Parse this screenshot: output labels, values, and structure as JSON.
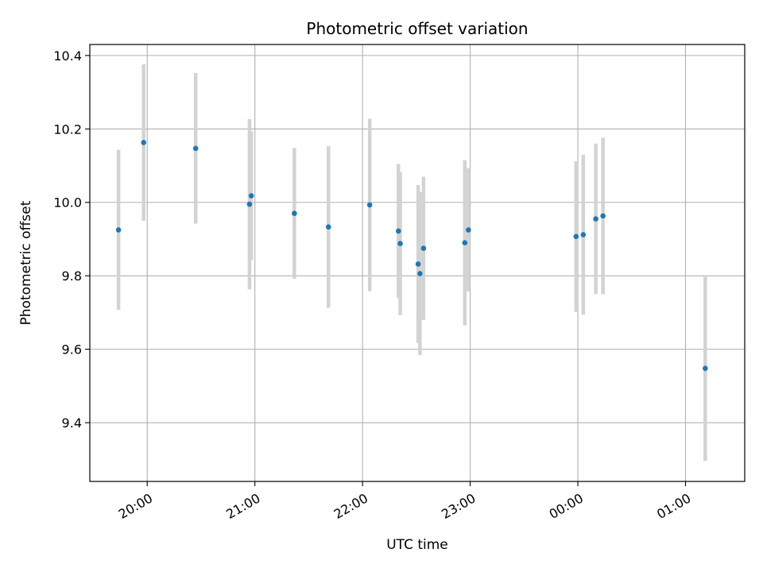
{
  "chart_data": {
    "type": "scatter",
    "title": "Photometric offset variation",
    "xlabel": "UTC time",
    "ylabel": "Photometric offset",
    "x_unit": "UTC time (hours after 19:00)",
    "xlim": [
      "19:28",
      "25:33"
    ],
    "ylim": [
      9.24,
      10.43
    ],
    "grid": true,
    "x_ticks": [
      "20:00",
      "21:00",
      "22:00",
      "23:00",
      "00:00",
      "01:00"
    ],
    "y_ticks": [
      "9.4",
      "9.6",
      "9.8",
      "10.0",
      "10.2",
      "10.4"
    ],
    "marker_color": "#1f77b4",
    "errorbar_color": "#d3d3d3",
    "points": [
      {
        "time": "19:44",
        "y": 9.925,
        "err": 0.218
      },
      {
        "time": "19:58",
        "y": 10.163,
        "err": 0.213
      },
      {
        "time": "20:27",
        "y": 10.147,
        "err": 0.205
      },
      {
        "time": "20:57",
        "y": 9.995,
        "err": 0.232
      },
      {
        "time": "20:58",
        "y": 10.018,
        "err": 0.175
      },
      {
        "time": "21:22",
        "y": 9.97,
        "err": 0.178
      },
      {
        "time": "21:41",
        "y": 9.933,
        "err": 0.22
      },
      {
        "time": "22:04",
        "y": 9.993,
        "err": 0.235
      },
      {
        "time": "22:20",
        "y": 9.922,
        "err": 0.183
      },
      {
        "time": "22:21",
        "y": 9.888,
        "err": 0.195
      },
      {
        "time": "22:31",
        "y": 9.832,
        "err": 0.215
      },
      {
        "time": "22:32",
        "y": 9.806,
        "err": 0.222
      },
      {
        "time": "22:34",
        "y": 9.875,
        "err": 0.195
      },
      {
        "time": "22:57",
        "y": 9.89,
        "err": 0.225
      },
      {
        "time": "22:59",
        "y": 9.925,
        "err": 0.168
      },
      {
        "time": "23:59",
        "y": 9.907,
        "err": 0.205
      },
      {
        "time": "24:03",
        "y": 9.912,
        "err": 0.218
      },
      {
        "time": "24:10",
        "y": 9.955,
        "err": 0.205
      },
      {
        "time": "24:14",
        "y": 9.963,
        "err": 0.213
      },
      {
        "time": "25:11",
        "y": 9.548,
        "err": 0.252
      }
    ]
  }
}
